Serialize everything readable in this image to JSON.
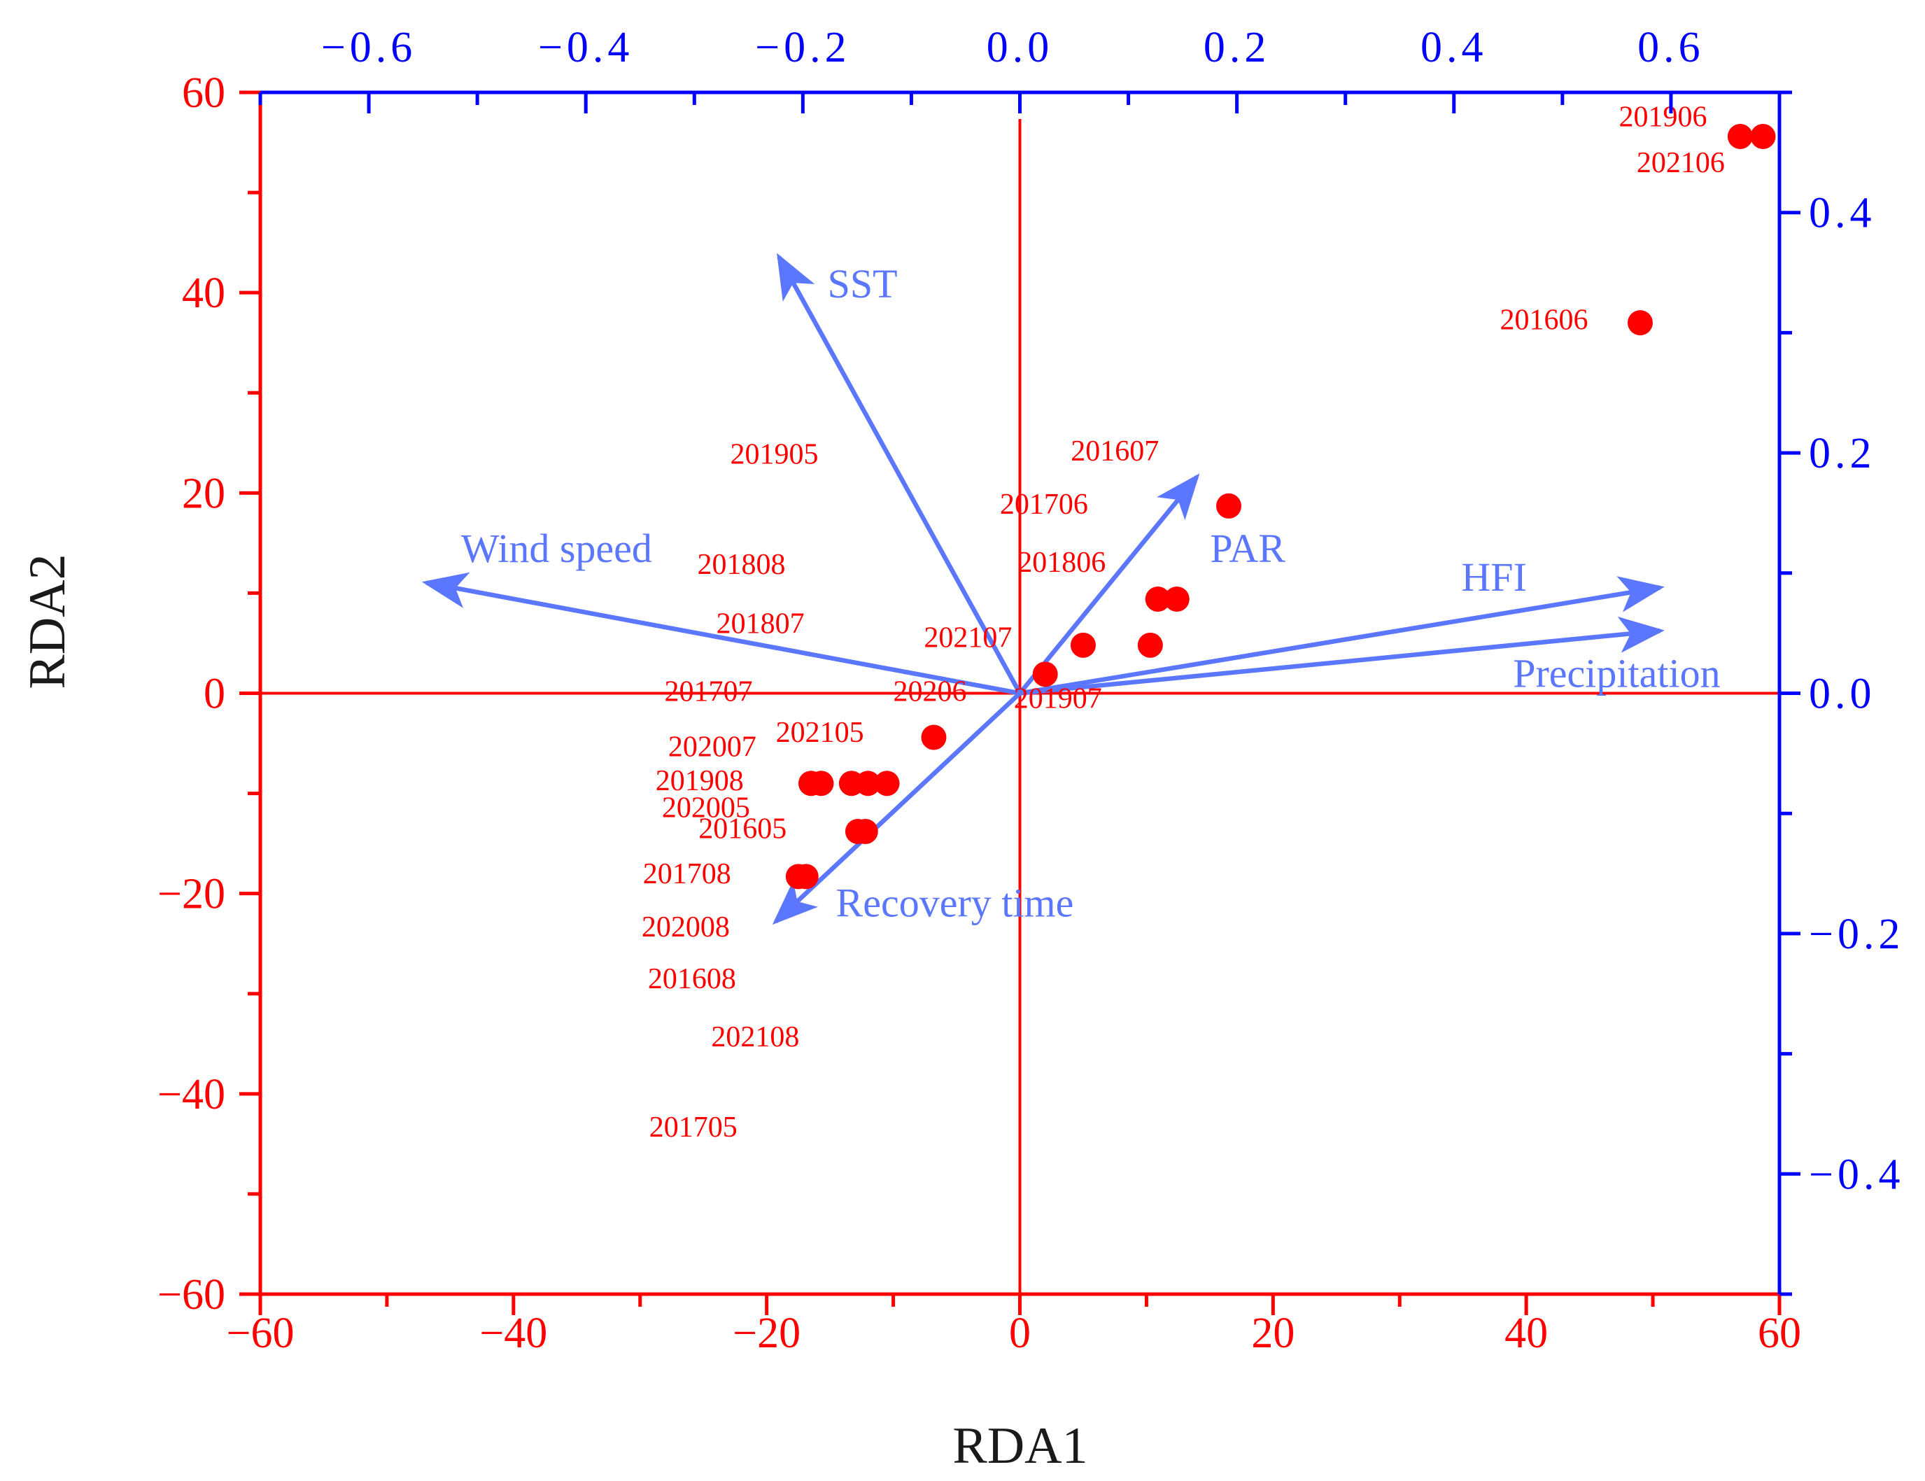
{
  "chart_data": {
    "type": "scatter",
    "subtype": "rda-biplot",
    "title": "",
    "xlabel": "RDA1",
    "ylabel": "RDA2",
    "xlim": [
      -60,
      60
    ],
    "ylim": [
      -60,
      60
    ],
    "x_ticks": [
      "−60",
      "−40",
      "−20",
      "0",
      "20",
      "40",
      "60"
    ],
    "y_ticks": [
      "60",
      "40",
      "20",
      "0",
      "−20",
      "−40",
      "−60"
    ],
    "secondary_x": {
      "lim": [
        -0.7,
        0.7
      ],
      "ticks": [
        "−0.6",
        "−0.4",
        "−0.2",
        "0.0",
        "0.2",
        "0.4",
        "0.6"
      ],
      "values": [
        -0.6,
        -0.4,
        -0.2,
        0.0,
        0.2,
        0.4,
        0.6
      ]
    },
    "secondary_y": {
      "lim": [
        -0.5,
        0.5
      ],
      "ticks": [
        "0.4",
        "0.2",
        "0.0",
        "−0.2",
        "−0.4"
      ],
      "values": [
        0.4,
        0.2,
        0.0,
        -0.2,
        -0.4
      ]
    },
    "colors": {
      "primary_axis": "#ff0000",
      "secondary_axis": "#0000ff",
      "points": "#ff0000",
      "sample_labels": "#ff0000",
      "arrows": "#5b76ff",
      "arrow_labels": "#5b76ff",
      "axis_title": "#1a1a1a"
    },
    "points": [
      {
        "x": 56.9,
        "y": 55.6
      },
      {
        "x": 58.7,
        "y": 55.6
      },
      {
        "x": 49.0,
        "y": 37.0
      },
      {
        "x": 16.5,
        "y": 18.7
      },
      {
        "x": 10.9,
        "y": 9.4
      },
      {
        "x": 12.4,
        "y": 9.4
      },
      {
        "x": 5.0,
        "y": 4.8
      },
      {
        "x": 10.3,
        "y": 4.8
      },
      {
        "x": 2.0,
        "y": 1.9
      },
      {
        "x": -6.8,
        "y": -4.4
      },
      {
        "x": -16.5,
        "y": -9.0
      },
      {
        "x": -15.7,
        "y": -9.0
      },
      {
        "x": -13.3,
        "y": -9.0
      },
      {
        "x": -12.0,
        "y": -9.0
      },
      {
        "x": -10.5,
        "y": -9.0
      },
      {
        "x": -12.8,
        "y": -13.8
      },
      {
        "x": -12.2,
        "y": -13.8
      },
      {
        "x": -17.5,
        "y": -18.3
      },
      {
        "x": -16.9,
        "y": -18.3
      }
    ],
    "sample_labels": [
      {
        "text": "201906",
        "x": 50.8,
        "y": 57.3
      },
      {
        "text": "202106",
        "x": 52.2,
        "y": 52.7
      },
      {
        "text": "201606",
        "x": 41.4,
        "y": 37.0
      },
      {
        "text": "201607",
        "x": 7.5,
        "y": 23.9
      },
      {
        "text": "201706",
        "x": 1.9,
        "y": 18.6
      },
      {
        "text": "201806",
        "x": 3.3,
        "y": 12.8
      },
      {
        "text": "202107",
        "x": -4.1,
        "y": 5.3
      },
      {
        "text": "20206",
        "x": -7.1,
        "y": -0.1
      },
      {
        "text": "201907",
        "x": 3.0,
        "y": -0.8
      },
      {
        "text": "201905",
        "x": -19.4,
        "y": 23.6
      },
      {
        "text": "201808",
        "x": -22.0,
        "y": 12.6
      },
      {
        "text": "201807",
        "x": -20.5,
        "y": 6.7
      },
      {
        "text": "201707",
        "x": -24.6,
        "y": -0.1
      },
      {
        "text": "202105",
        "x": -15.8,
        "y": -4.2
      },
      {
        "text": "202007",
        "x": -24.3,
        "y": -5.6
      },
      {
        "text": "201908",
        "x": -25.3,
        "y": -9.0
      },
      {
        "text": "202005",
        "x": -24.8,
        "y": -11.7
      },
      {
        "text": "201605",
        "x": -21.9,
        "y": -13.8
      },
      {
        "text": "201708",
        "x": -26.3,
        "y": -18.3
      },
      {
        "text": "202008",
        "x": -26.4,
        "y": -23.6
      },
      {
        "text": "201608",
        "x": -25.9,
        "y": -28.8
      },
      {
        "text": "202108",
        "x": -20.9,
        "y": -34.6
      },
      {
        "text": "201705",
        "x": -25.8,
        "y": -43.6
      }
    ],
    "arrows": [
      {
        "name": "SST",
        "x": -0.222,
        "y": 0.363,
        "label_x": -0.145,
        "label_y": 0.337
      },
      {
        "name": "Wind speed",
        "x": -0.547,
        "y": 0.092,
        "label_x": -0.427,
        "label_y": 0.117
      },
      {
        "name": "PAR",
        "x": 0.163,
        "y": 0.18,
        "label_x": 0.21,
        "label_y": 0.117
      },
      {
        "name": "HFI",
        "x": 0.59,
        "y": 0.088,
        "label_x": 0.437,
        "label_y": 0.093
      },
      {
        "name": "Precipitation",
        "x": 0.59,
        "y": 0.052,
        "label_x": 0.55,
        "label_y": 0.013
      },
      {
        "name": "Recovery time",
        "x": -0.225,
        "y": -0.19,
        "label_x": -0.06,
        "label_y": -0.178
      }
    ]
  }
}
